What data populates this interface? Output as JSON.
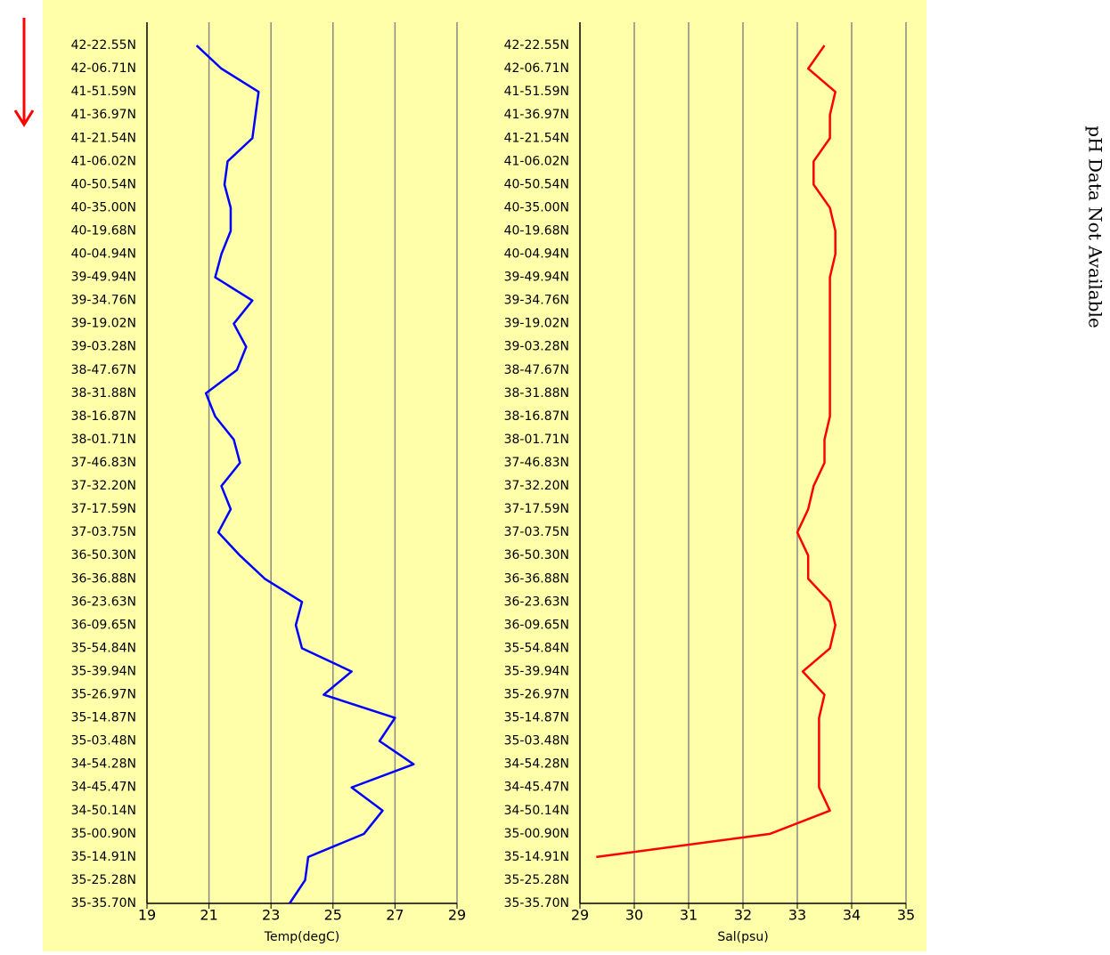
{
  "note": "pH Data Not Available",
  "chart_data": [
    {
      "type": "line",
      "xlabel": "Temp(degC)",
      "categories": [
        "42-22.55N",
        "42-06.71N",
        "41-51.59N",
        "41-36.97N",
        "41-21.54N",
        "41-06.02N",
        "40-50.54N",
        "40-35.00N",
        "40-19.68N",
        "40-04.94N",
        "39-49.94N",
        "39-34.76N",
        "39-19.02N",
        "39-03.28N",
        "38-47.67N",
        "38-31.88N",
        "38-16.87N",
        "38-01.71N",
        "37-46.83N",
        "37-32.20N",
        "37-17.59N",
        "37-03.75N",
        "36-50.30N",
        "36-36.88N",
        "36-23.63N",
        "36-09.65N",
        "35-54.84N",
        "35-39.94N",
        "35-26.97N",
        "35-14.87N",
        "35-03.48N",
        "34-54.28N",
        "34-45.47N",
        "34-50.14N",
        "35-00.90N",
        "35-14.91N",
        "35-25.28N",
        "35-35.70N"
      ],
      "series": [
        {
          "color": "#0000ff",
          "values": [
            20.6,
            21.4,
            22.6,
            22.5,
            22.4,
            21.6,
            21.5,
            21.7,
            21.7,
            21.4,
            21.2,
            22.4,
            21.8,
            22.2,
            21.9,
            20.9,
            21.2,
            21.8,
            22.0,
            21.4,
            21.7,
            21.3,
            22.0,
            22.8,
            24.0,
            23.8,
            24.0,
            25.6,
            24.7,
            27.0,
            26.5,
            27.6,
            25.6,
            26.6,
            26.0,
            24.2,
            24.1,
            23.6
          ]
        }
      ],
      "xlim": [
        19,
        29
      ],
      "xticks": [
        19,
        21,
        23,
        25,
        27,
        29
      ],
      "grid": true
    },
    {
      "type": "line",
      "xlabel": "Sal(psu)",
      "categories": [
        "42-22.55N",
        "42-06.71N",
        "41-51.59N",
        "41-36.97N",
        "41-21.54N",
        "41-06.02N",
        "40-50.54N",
        "40-35.00N",
        "40-19.68N",
        "40-04.94N",
        "39-49.94N",
        "39-34.76N",
        "39-19.02N",
        "39-03.28N",
        "38-47.67N",
        "38-31.88N",
        "38-16.87N",
        "38-01.71N",
        "37-46.83N",
        "37-32.20N",
        "37-17.59N",
        "37-03.75N",
        "36-50.30N",
        "36-36.88N",
        "36-23.63N",
        "36-09.65N",
        "35-54.84N",
        "35-39.94N",
        "35-26.97N",
        "35-14.87N",
        "35-03.48N",
        "34-54.28N",
        "34-45.47N",
        "34-50.14N",
        "35-00.90N",
        "35-14.91N",
        "35-25.28N",
        "35-35.70N"
      ],
      "series": [
        {
          "color": "#ff0000",
          "values": [
            33.5,
            33.2,
            33.7,
            33.6,
            33.6,
            33.3,
            33.3,
            33.6,
            33.7,
            33.7,
            33.6,
            33.6,
            33.6,
            33.6,
            33.6,
            33.6,
            33.6,
            33.5,
            33.5,
            33.3,
            33.2,
            33.0,
            33.2,
            33.2,
            33.6,
            33.7,
            33.6,
            33.1,
            33.5,
            33.4,
            33.4,
            33.4,
            33.4,
            33.6,
            32.5,
            29.3,
            null,
            null
          ]
        }
      ],
      "xlim": [
        29,
        35
      ],
      "xticks": [
        29,
        30,
        31,
        32,
        33,
        34,
        35
      ],
      "grid": true
    }
  ]
}
